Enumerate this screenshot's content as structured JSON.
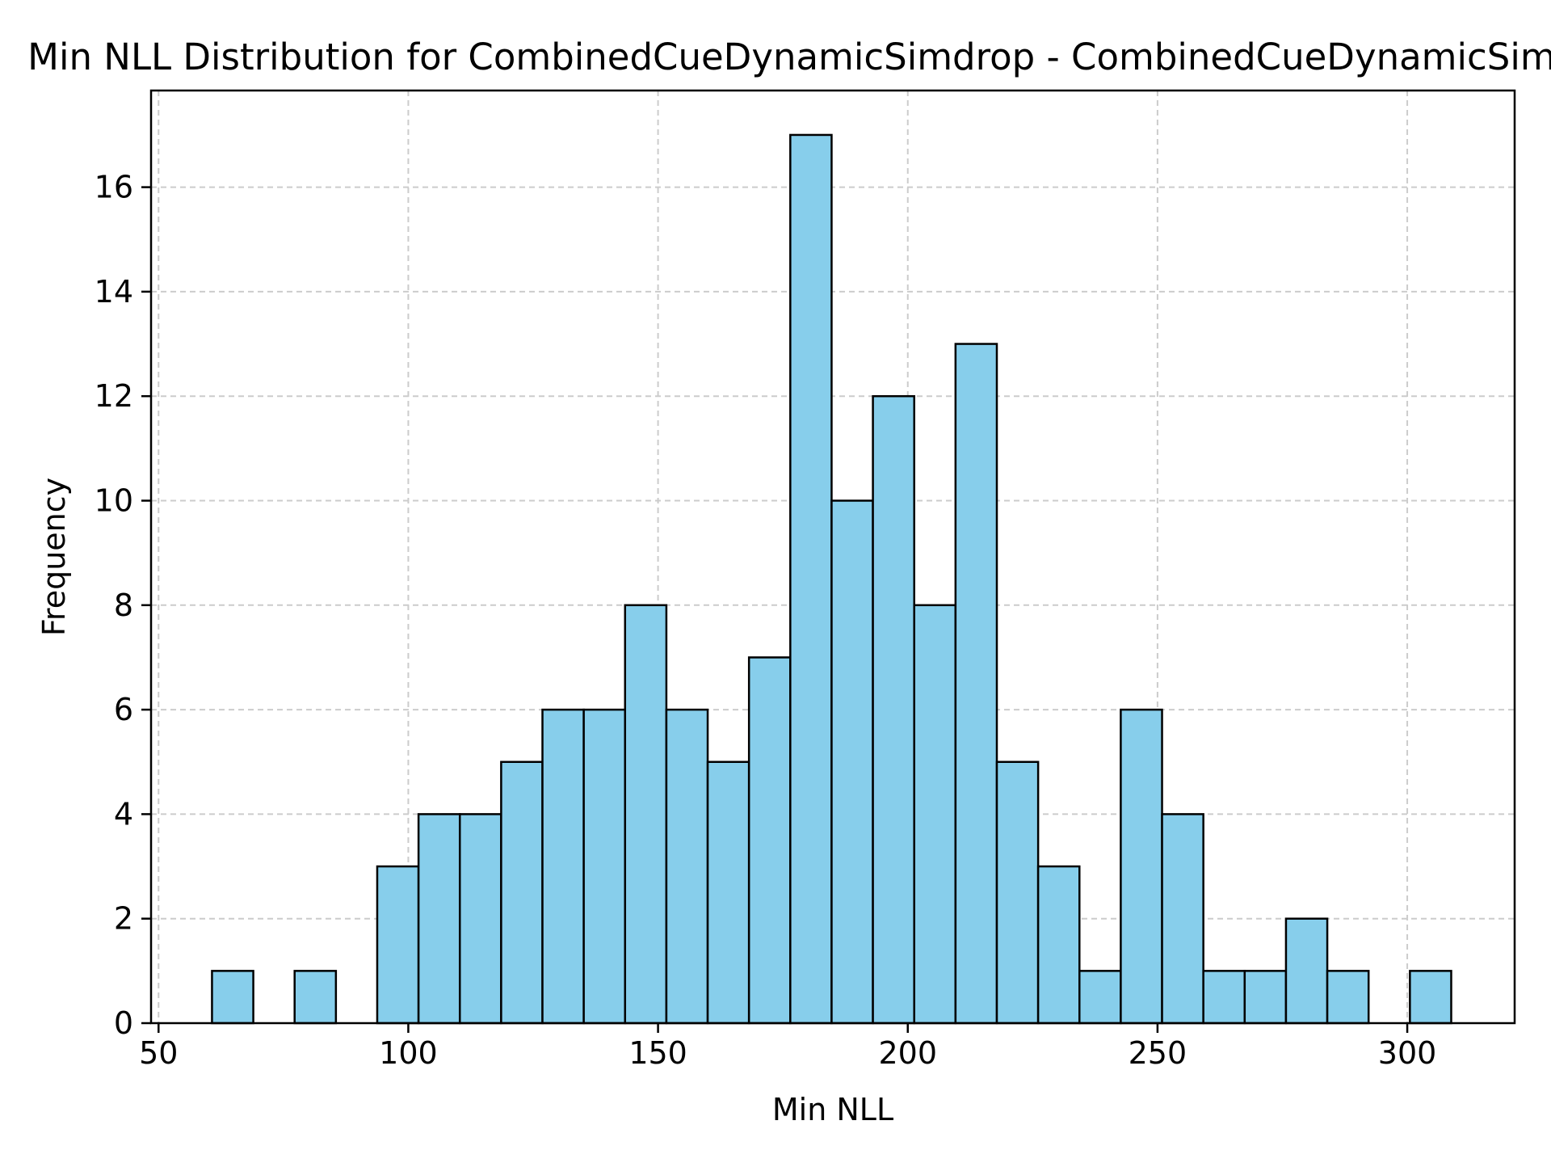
{
  "chart_data": {
    "type": "bar",
    "title": "Min NLL Distribution for CombinedCueDynamicSimdrop - CombinedCueDynamicSimdrop",
    "xlabel": "Min NLL",
    "ylabel": "Frequency",
    "xlim": [
      48.5,
      321.5
    ],
    "ylim": [
      0,
      17.85
    ],
    "xticks": [
      50,
      100,
      150,
      200,
      250,
      300
    ],
    "yticks": [
      0,
      2,
      4,
      6,
      8,
      10,
      12,
      14,
      16
    ],
    "grid": true,
    "bar_color": "#87ceeb",
    "edge_color": "#000000",
    "bin_start": 60.7,
    "bin_width": 8.27,
    "values": [
      1,
      0,
      1,
      0,
      3,
      4,
      4,
      5,
      6,
      6,
      8,
      6,
      5,
      7,
      17,
      10,
      12,
      8,
      13,
      5,
      3,
      1,
      6,
      4,
      1,
      1,
      2,
      1,
      0,
      1
    ]
  }
}
